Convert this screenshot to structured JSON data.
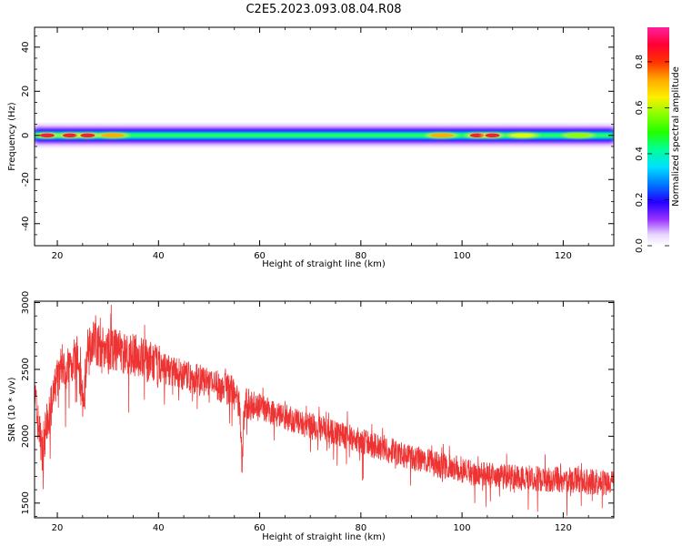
{
  "title": "C2E5.2023.093.08.04.R08",
  "chart_data": [
    {
      "type": "heatmap",
      "xlabel": "Height of straight line (km)",
      "ylabel": "Frequency (Hz)",
      "xlim": [
        15.5,
        130
      ],
      "ylim": [
        -50,
        49
      ],
      "xticks": [
        20,
        40,
        60,
        80,
        100,
        120
      ],
      "yticks": [
        -40,
        -20,
        0,
        20,
        40
      ],
      "colorbar": {
        "label": "Normalized spectral amplitude",
        "range": [
          0,
          0.95
        ],
        "ticks": [
          0.0,
          0.2,
          0.4,
          0.6,
          0.8
        ],
        "colormap": "gist_ncar-like (white-purple-blue-cyan-green-yellow-red-magenta)"
      },
      "band": {
        "center_freq_hz": 0,
        "half_width_hz": [
          -6,
          6
        ],
        "description": "narrow energy band centered at 0 Hz across all heights"
      },
      "hotspots": [
        {
          "x": 18,
          "amplitude": 0.85
        },
        {
          "x": 22.5,
          "amplitude": 0.8
        },
        {
          "x": 26,
          "amplitude": 0.8
        },
        {
          "x": 31,
          "amplitude": 0.7
        },
        {
          "x": 96,
          "amplitude": 0.72
        },
        {
          "x": 103,
          "amplitude": 0.8
        },
        {
          "x": 106,
          "amplitude": 0.82
        },
        {
          "x": 112,
          "amplitude": 0.6
        },
        {
          "x": 123,
          "amplitude": 0.55
        }
      ]
    },
    {
      "type": "line",
      "xlabel": "Height of straight line (km)",
      "ylabel": "SNR (10 * v/v)",
      "xlim": [
        15.5,
        130
      ],
      "ylim": [
        1390,
        3010
      ],
      "xticks": [
        20,
        40,
        60,
        80,
        100,
        120
      ],
      "yticks": [
        1500,
        2000,
        2500,
        3000
      ],
      "color": "#ee3333",
      "series": [
        {
          "x": [
            15.5,
            16,
            17,
            18,
            19,
            20,
            21,
            22,
            23,
            24,
            25,
            26,
            27,
            28,
            30,
            32,
            34,
            36,
            38,
            40,
            42,
            44,
            46,
            48,
            50,
            52,
            54,
            55,
            56,
            56.5,
            57,
            58,
            60,
            62,
            64,
            66,
            68,
            70,
            72,
            74,
            76,
            78,
            80,
            82,
            84,
            86,
            88,
            90,
            92,
            94,
            96,
            98,
            100,
            102,
            104,
            106,
            108,
            110,
            112,
            114,
            116,
            118,
            120,
            122,
            124,
            126,
            128,
            130
          ],
          "y": [
            2350,
            2150,
            1900,
            2100,
            2250,
            2450,
            2550,
            2500,
            2560,
            2600,
            2250,
            2650,
            2720,
            2680,
            2650,
            2640,
            2620,
            2600,
            2560,
            2520,
            2500,
            2470,
            2440,
            2420,
            2400,
            2370,
            2350,
            2330,
            2250,
            1800,
            2250,
            2240,
            2220,
            2190,
            2160,
            2130,
            2100,
            2080,
            2060,
            2040,
            2010,
            1990,
            1960,
            1940,
            1910,
            1890,
            1860,
            1840,
            1820,
            1800,
            1780,
            1770,
            1750,
            1730,
            1720,
            1710,
            1700,
            1700,
            1690,
            1690,
            1680,
            1680,
            1670,
            1670,
            1660,
            1660,
            1650,
            1650
          ]
        }
      ]
    }
  ]
}
